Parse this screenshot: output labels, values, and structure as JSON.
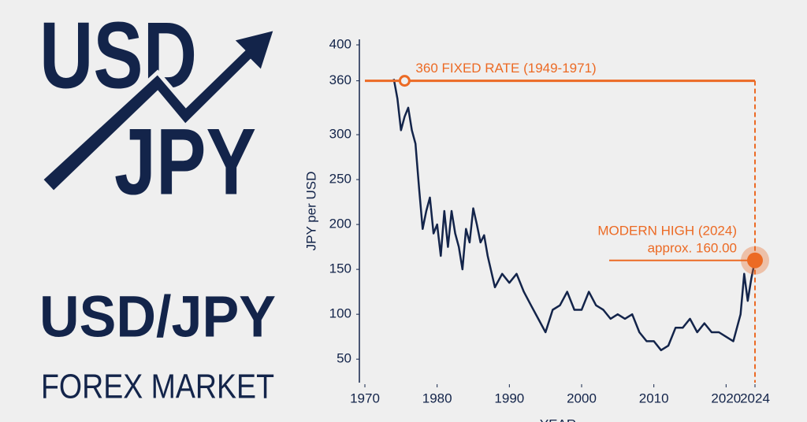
{
  "logo": {
    "top": "USD",
    "bottom": "JPY",
    "title": "USD/JPY",
    "subtitle": "FOREX MARKET"
  },
  "chart_data": {
    "type": "line",
    "xlabel": "YEAR",
    "ylabel": "JPY per USD",
    "xlim": [
      1970,
      2024
    ],
    "ylim": [
      30,
      400
    ],
    "xticks": [
      1970,
      1980,
      1990,
      2000,
      2010,
      2020,
      2024
    ],
    "yticks": [
      50,
      100,
      150,
      200,
      250,
      300,
      360,
      400
    ],
    "series": [
      {
        "name": "USD/JPY",
        "color": "#13244a",
        "x": [
          1974,
          1974.5,
          1975,
          1975.5,
          1976,
          1976.5,
          1977,
          1977.5,
          1978,
          1978.5,
          1979,
          1979.5,
          1980,
          1980.5,
          1981,
          1981.5,
          1982,
          1982.5,
          1983,
          1983.5,
          1984,
          1984.5,
          1985,
          1985.5,
          1986,
          1986.5,
          1987,
          1988,
          1989,
          1990,
          1991,
          1992,
          1993,
          1994,
          1995,
          1996,
          1997,
          1998,
          1999,
          2000,
          2001,
          2002,
          2003,
          2004,
          2005,
          2006,
          2007,
          2008,
          2009,
          2010,
          2011,
          2012,
          2013,
          2014,
          2015,
          2016,
          2017,
          2018,
          2019,
          2020,
          2021,
          2022,
          2022.5,
          2023,
          2023.5,
          2024
        ],
        "values": [
          362,
          340,
          305,
          320,
          330,
          305,
          290,
          240,
          195,
          215,
          230,
          190,
          200,
          165,
          215,
          175,
          215,
          190,
          175,
          150,
          195,
          180,
          218,
          200,
          180,
          188,
          165,
          130,
          145,
          135,
          145,
          125,
          110,
          95,
          80,
          105,
          110,
          125,
          105,
          105,
          125,
          110,
          105,
          95,
          100,
          95,
          100,
          80,
          70,
          70,
          60,
          65,
          85,
          85,
          95,
          80,
          90,
          80,
          80,
          75,
          70,
          100,
          145,
          115,
          140,
          160
        ]
      },
      {
        "name": "Fixed rate",
        "color": "#ec6a24",
        "x": [
          1970,
          2024
        ],
        "values": [
          360,
          360
        ]
      }
    ],
    "annotations": [
      {
        "text": "360 FIXED RATE (1949-1971)",
        "x": 1975.5,
        "y": 360
      },
      {
        "text": "MODERN HIGH (2024)",
        "x": 2024,
        "y": 160,
        "value_label": "approx. 160.00"
      }
    ]
  }
}
